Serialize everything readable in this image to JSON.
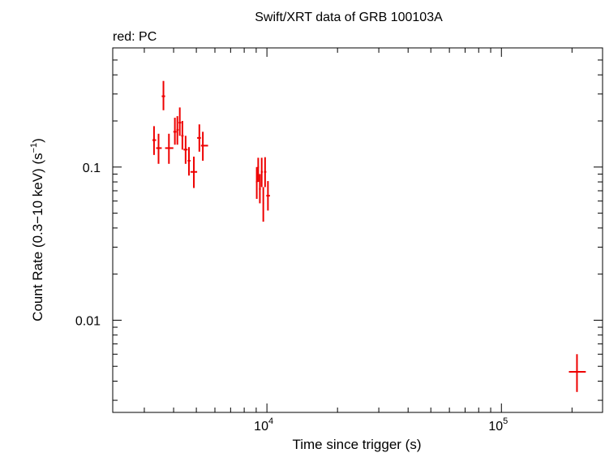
{
  "chart_data": {
    "type": "scatter",
    "title": "Swift/XRT data of GRB 100103A",
    "subtitle": "red: PC",
    "xlabel": "Time since trigger (s)",
    "ylabel_main": "Count Rate (0.3−10 keV) (s",
    "ylabel_exp": "−1",
    "ylabel_close": ")",
    "x_scale": "log",
    "y_scale": "log",
    "xlim": [
      2200,
      270000
    ],
    "ylim": [
      0.0025,
      0.6
    ],
    "x_tick_labels": [
      {
        "value": 10000,
        "base": "10",
        "exp": "4"
      },
      {
        "value": 100000,
        "base": "10",
        "exp": "5"
      }
    ],
    "y_tick_labels": [
      {
        "value": 0.1,
        "label": "0.1"
      },
      {
        "value": 0.01,
        "label": "0.01"
      }
    ],
    "grid": false,
    "series": [
      {
        "color": "#ee0000",
        "points": [
          {
            "x": 3300,
            "xerr": [
              3250,
              3370
            ],
            "y": 0.15,
            "yerr": [
              0.12,
              0.185
            ]
          },
          {
            "x": 3450,
            "xerr": [
              3370,
              3560
            ],
            "y": 0.133,
            "yerr": [
              0.105,
              0.165
            ]
          },
          {
            "x": 3620,
            "xerr": [
              3560,
              3680
            ],
            "y": 0.29,
            "yerr": [
              0.235,
              0.365
            ]
          },
          {
            "x": 3820,
            "xerr": [
              3680,
              3990
            ],
            "y": 0.133,
            "yerr": [
              0.105,
              0.165
            ]
          },
          {
            "x": 4050,
            "xerr": [
              3990,
              4110
            ],
            "y": 0.17,
            "yerr": [
              0.14,
              0.21
            ]
          },
          {
            "x": 4150,
            "xerr": [
              4110,
              4200
            ],
            "y": 0.175,
            "yerr": [
              0.14,
              0.215
            ]
          },
          {
            "x": 4250,
            "xerr": [
              4200,
              4310
            ],
            "y": 0.195,
            "yerr": [
              0.16,
              0.245
            ]
          },
          {
            "x": 4360,
            "xerr": [
              4310,
              4410
            ],
            "y": 0.16,
            "yerr": [
              0.13,
              0.2
            ]
          },
          {
            "x": 4500,
            "xerr": [
              4410,
              4590
            ],
            "y": 0.13,
            "yerr": [
              0.105,
              0.16
            ]
          },
          {
            "x": 4650,
            "xerr": [
              4590,
              4720
            ],
            "y": 0.11,
            "yerr": [
              0.088,
              0.135
            ]
          },
          {
            "x": 4880,
            "xerr": [
              4720,
              5040
            ],
            "y": 0.093,
            "yerr": [
              0.073,
              0.117
            ]
          },
          {
            "x": 5150,
            "xerr": [
              5040,
              5230
            ],
            "y": 0.155,
            "yerr": [
              0.126,
              0.19
            ]
          },
          {
            "x": 5330,
            "xerr": [
              5230,
              5610
            ],
            "y": 0.138,
            "yerr": [
              0.11,
              0.17
            ]
          },
          {
            "x": 9050,
            "xerr": [
              8980,
              9120
            ],
            "y": 0.08,
            "yerr": [
              0.062,
              0.1
            ]
          },
          {
            "x": 9180,
            "xerr": [
              9120,
              9250
            ],
            "y": 0.1,
            "yerr": [
              0.08,
              0.115
            ]
          },
          {
            "x": 9330,
            "xerr": [
              9250,
              9420
            ],
            "y": 0.072,
            "yerr": [
              0.058,
              0.09
            ]
          },
          {
            "x": 9500,
            "xerr": [
              9420,
              9600
            ],
            "y": 0.093,
            "yerr": [
              0.074,
              0.115
            ]
          },
          {
            "x": 9650,
            "xerr": [
              9600,
              9720
            ],
            "y": 0.058,
            "yerr": [
              0.044,
              0.074
            ]
          },
          {
            "x": 9820,
            "xerr": [
              9720,
              9940
            ],
            "y": 0.093,
            "yerr": [
              0.074,
              0.116
            ]
          },
          {
            "x": 10100,
            "xerr": [
              9940,
              10300
            ],
            "y": 0.065,
            "yerr": [
              0.052,
              0.081
            ]
          },
          {
            "x": 210000,
            "xerr": [
              194000,
              229000
            ],
            "y": 0.0046,
            "yerr": [
              0.0034,
              0.006
            ]
          }
        ]
      }
    ]
  }
}
